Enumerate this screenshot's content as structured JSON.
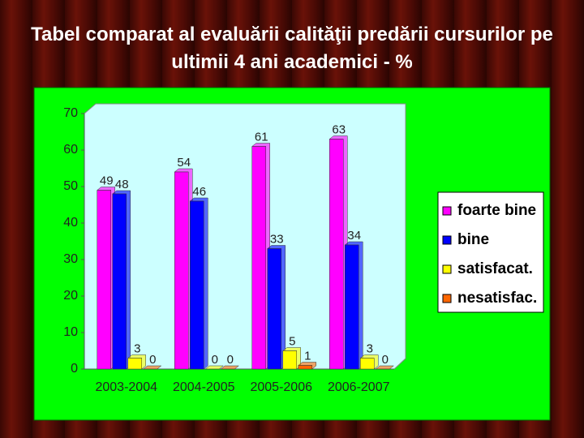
{
  "chart_data": {
    "type": "bar",
    "title": "Tabel comparat al evaluării calităţii predării cursurilor pe ultimii 4 ani academici - %",
    "categories": [
      "2003-2004",
      "2004-2005",
      "2005-2006",
      "2006-2007"
    ],
    "series": [
      {
        "name": "foarte bine",
        "color": "#ff00ff",
        "values": [
          49,
          54,
          61,
          63
        ]
      },
      {
        "name": "bine",
        "color": "#0000ff",
        "values": [
          48,
          46,
          33,
          34
        ]
      },
      {
        "name": "satisfacat.",
        "color": "#ffff00",
        "values": [
          3,
          0,
          5,
          3
        ]
      },
      {
        "name": "nesatisfac.",
        "color": "#ff6600",
        "values": [
          0,
          0,
          1,
          0
        ]
      }
    ],
    "ylim": [
      0,
      70
    ],
    "yticks": [
      0,
      10,
      20,
      30,
      40,
      50,
      60,
      70
    ],
    "grid": false,
    "legend": "right"
  }
}
